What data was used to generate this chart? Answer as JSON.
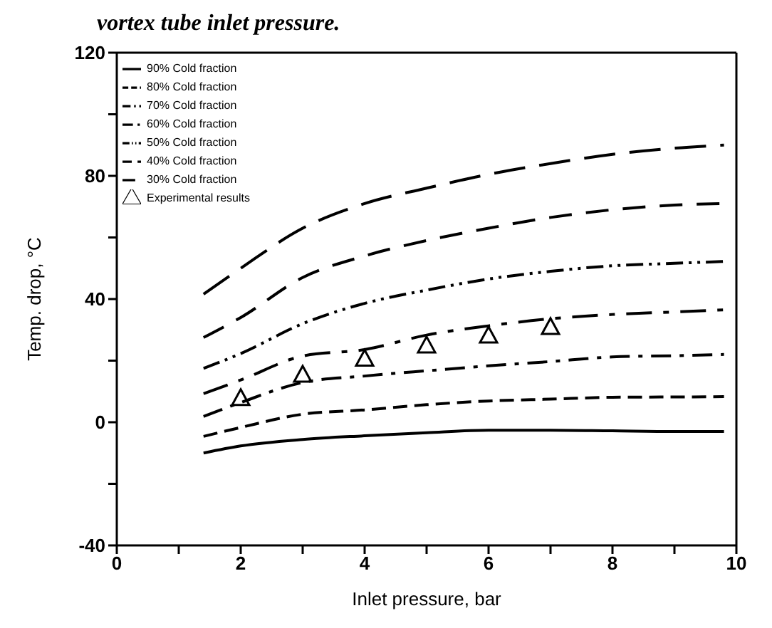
{
  "chart_data": {
    "type": "line",
    "title": "vortex tube inlet pressure.",
    "xlabel": "Inlet pressure, bar",
    "ylabel": "Temp. drop, °C",
    "xlim": [
      0,
      10
    ],
    "xticks": [
      0,
      {
        "value": 1,
        "label": null
      },
      2,
      {
        "value": 3,
        "label": null
      },
      4,
      {
        "value": 5,
        "label": null
      },
      6,
      {
        "value": 7,
        "label": null
      },
      8,
      {
        "value": 9,
        "label": null
      },
      10
    ],
    "ylim": [
      -40,
      120
    ],
    "yticks": [
      -40,
      {
        "value": -20,
        "label": null
      },
      0,
      {
        "value": 20,
        "label": null
      },
      40,
      {
        "value": 60,
        "label": null
      },
      80,
      {
        "value": 100,
        "label": null
      },
      120
    ],
    "legend": "top left",
    "marker": "none",
    "series": [
      {
        "name": "90% Cold fraction",
        "color": "#000000",
        "line_style": "solid",
        "x": [
          1.4,
          2,
          3,
          4,
          5,
          6,
          7,
          8,
          9,
          9.8
        ],
        "values": [
          -10,
          -7.7,
          -5.6,
          -4.4,
          -3.4,
          -2.6,
          -2.6,
          -2.8,
          -3,
          -3
        ]
      },
      {
        "name": "80% Cold fraction",
        "color": "#000000",
        "line_style": "dashed",
        "x": [
          1.4,
          2,
          3,
          4,
          5,
          6,
          7,
          8,
          9,
          9.8
        ],
        "values": [
          -4.6,
          -1.7,
          2.6,
          4,
          5.7,
          6.9,
          7.5,
          8.1,
          8.2,
          8.3
        ]
      },
      {
        "name": "70% Cold fraction",
        "color": "#000000",
        "line_style": "dashed",
        "x": [
          1.4,
          2,
          3,
          4,
          5,
          6,
          7,
          8,
          9,
          9.8
        ],
        "values": [
          1.9,
          6.4,
          12.9,
          15,
          16.7,
          18.3,
          19.7,
          21.2,
          21.6,
          22
        ]
      },
      {
        "name": "60% Cold fraction",
        "color": "#000000",
        "line_style": "dashed",
        "x": [
          1.4,
          2,
          3,
          4,
          5,
          6,
          7,
          8,
          9,
          9.8
        ],
        "values": [
          9.3,
          13.7,
          21.5,
          23.6,
          28.3,
          31.3,
          33.6,
          35,
          35.8,
          36.5
        ]
      },
      {
        "name": "50% Cold fraction",
        "color": "#000000",
        "line_style": "dashed",
        "x": [
          1.4,
          2,
          3,
          4,
          5,
          6,
          7,
          8,
          9,
          9.8
        ],
        "values": [
          17.5,
          22.3,
          32,
          38.6,
          42.9,
          46.5,
          49,
          50.8,
          51.6,
          52.2
        ]
      },
      {
        "name": "40% Cold fraction",
        "color": "#000000",
        "line_style": "dashed",
        "x": [
          1.4,
          2,
          3,
          4,
          5,
          6,
          7,
          8,
          9,
          9.8
        ],
        "values": [
          27.5,
          34,
          47,
          54,
          59,
          63,
          66.5,
          69,
          70.5,
          71
        ]
      },
      {
        "name": "30% Cold fraction",
        "color": "#000000",
        "line_style": "dashed",
        "x": [
          1.4,
          2,
          3,
          4,
          5,
          6,
          7,
          8,
          9,
          9.8
        ],
        "values": [
          41.6,
          50,
          63,
          71,
          76,
          80.5,
          84,
          87,
          89,
          90
        ]
      },
      {
        "name": "Experimental results",
        "type": "scatter",
        "marker": "triangle",
        "color": "#000000",
        "x": [
          2,
          3,
          4,
          5,
          6,
          7
        ],
        "values": [
          7.9,
          15.5,
          20.7,
          25,
          28.2,
          31
        ]
      }
    ]
  }
}
